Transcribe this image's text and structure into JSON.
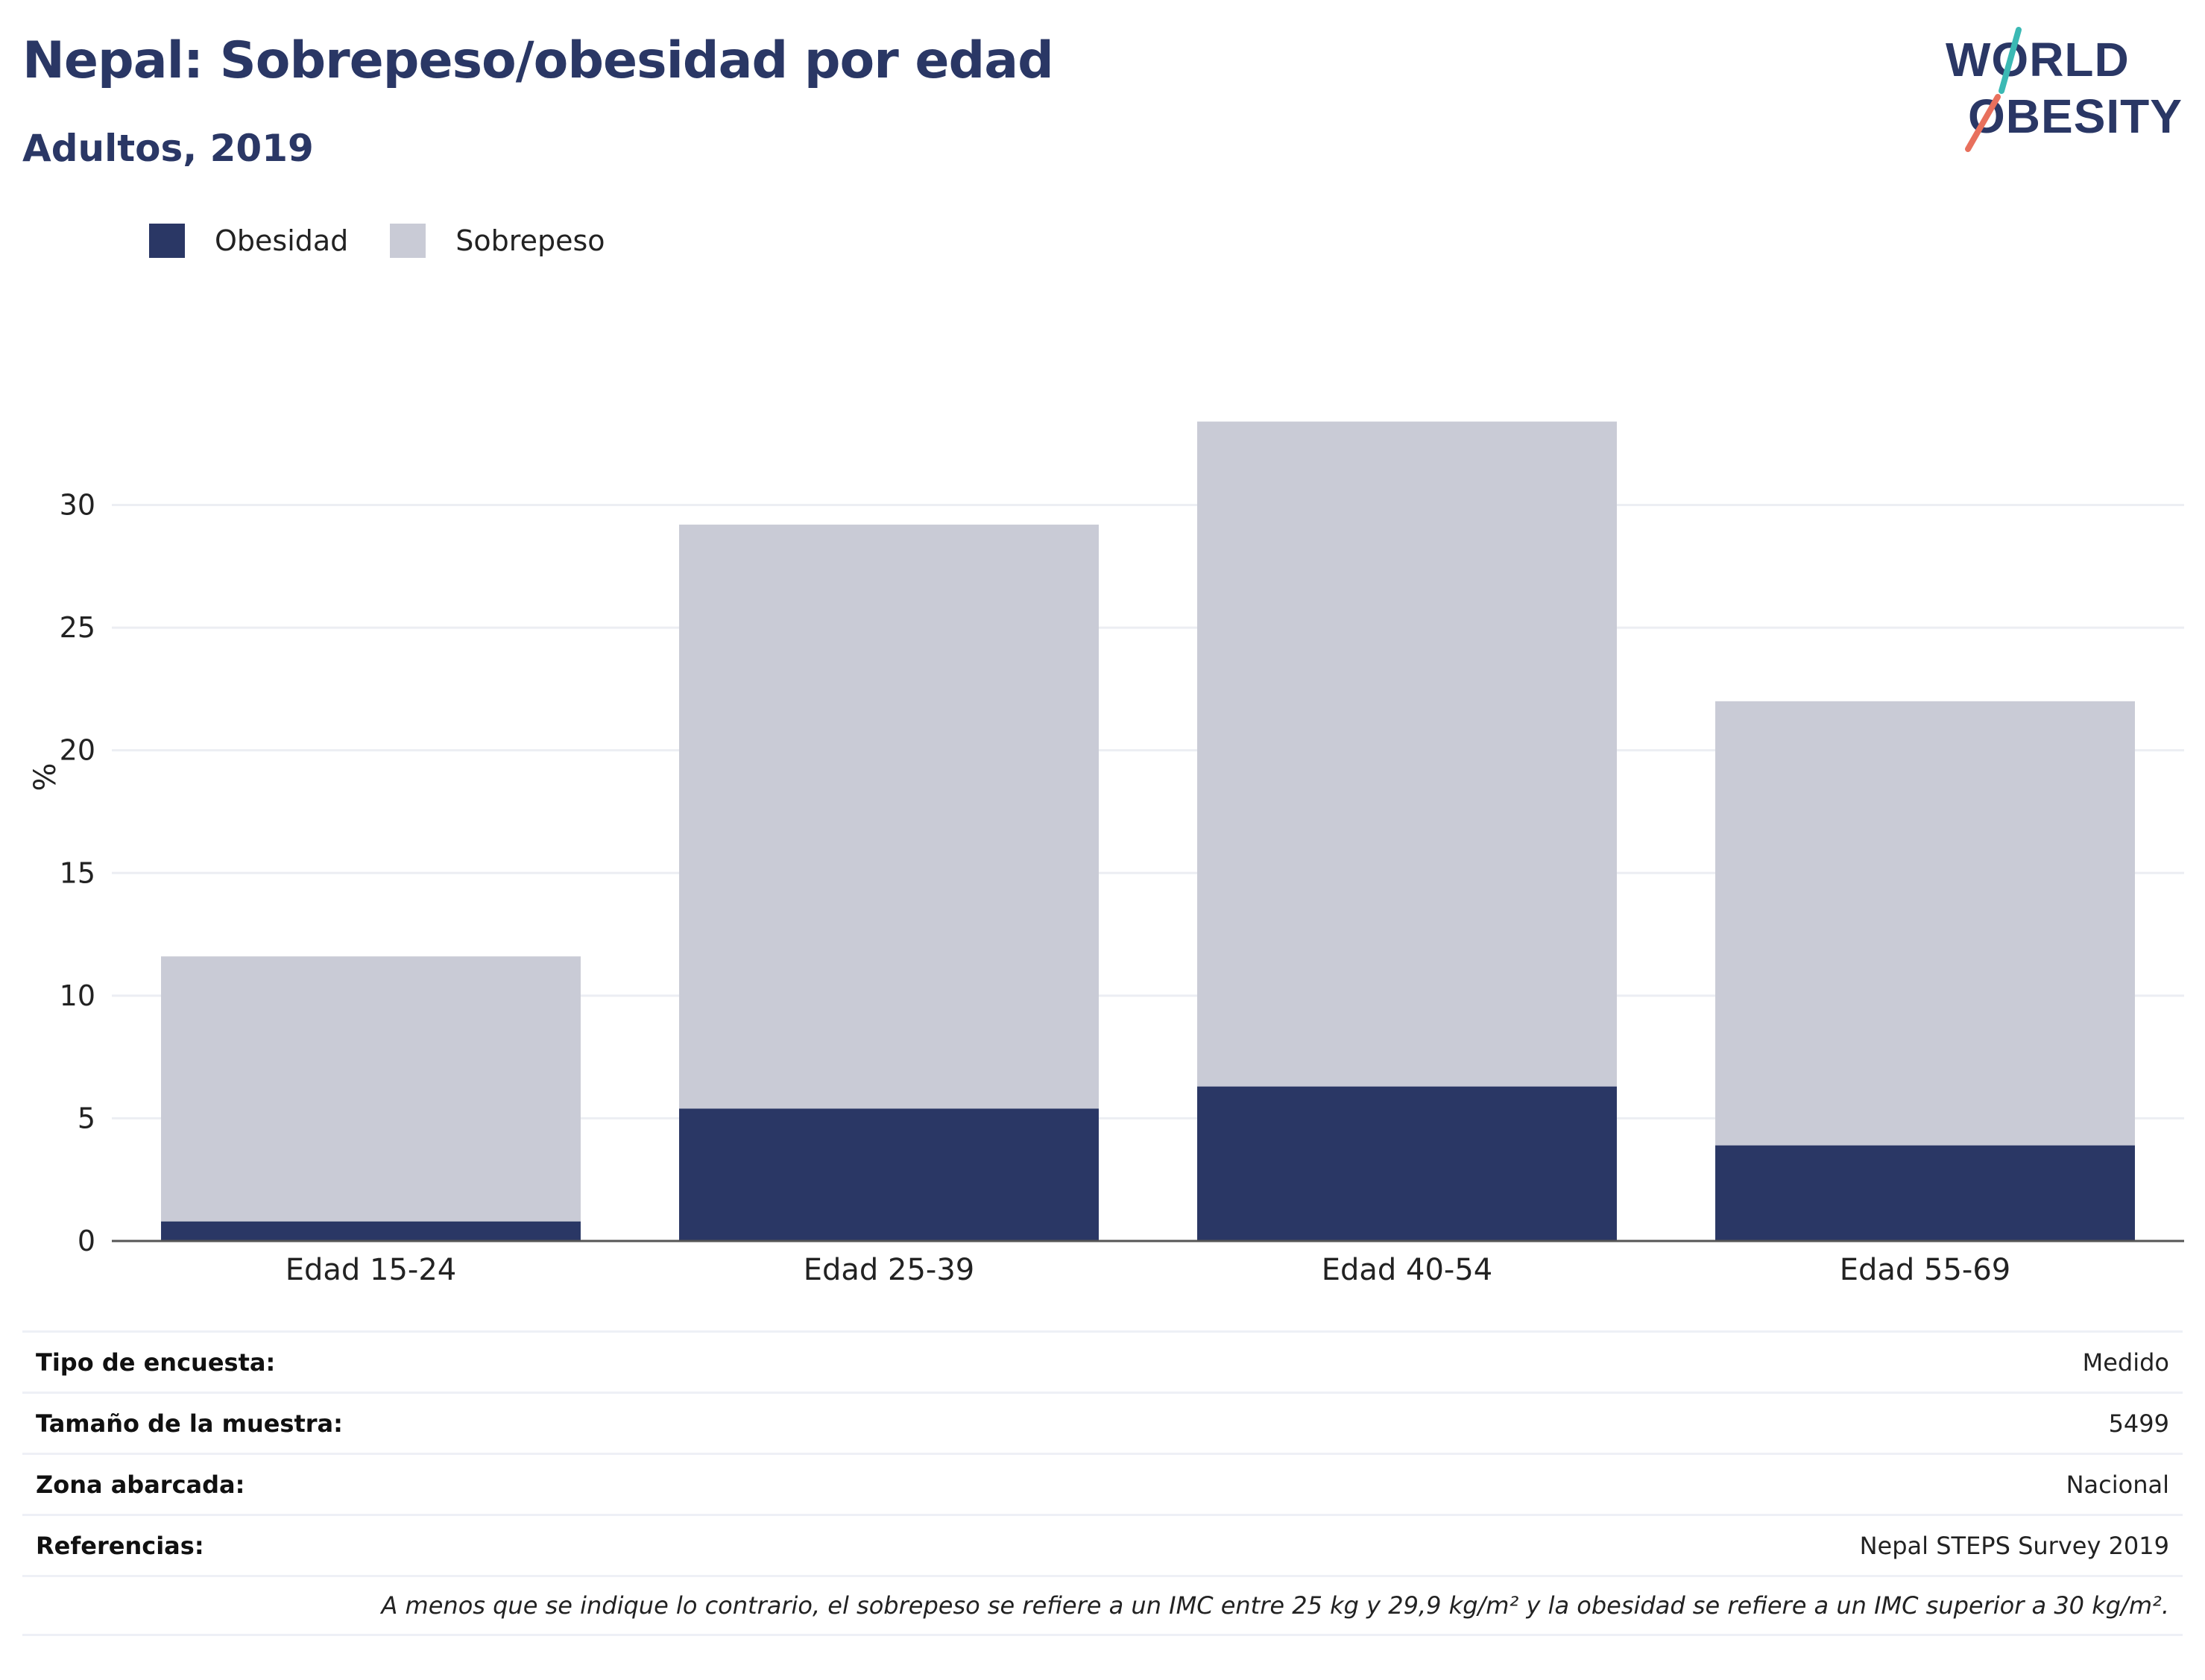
{
  "header": {
    "title": "Nepal: Sobrepeso/obesidad por edad",
    "subtitle": "Adultos, 2019"
  },
  "logo": {
    "line1": "WORLD",
    "line2": "OBESITY",
    "accent_colors": [
      "#e8705d",
      "#3bb9b4"
    ]
  },
  "legend": [
    {
      "label": "Obesidad",
      "color": "#2a3765"
    },
    {
      "label": "Sobrepeso",
      "color": "#c9cbd6"
    }
  ],
  "chart_data": {
    "type": "bar",
    "stacked": true,
    "categories": [
      "Edad 15-24",
      "Edad 25-39",
      "Edad 40-54",
      "Edad 55-69"
    ],
    "series": [
      {
        "name": "Obesidad",
        "color": "#2a3765",
        "values": [
          0.8,
          5.4,
          6.3,
          3.9
        ]
      },
      {
        "name": "Sobrepeso",
        "color": "#c9cbd6",
        "values": [
          10.8,
          23.8,
          27.1,
          18.1
        ]
      }
    ],
    "ylabel": "%",
    "yticks": [
      0,
      5,
      10,
      15,
      20,
      25,
      30
    ],
    "ylim": [
      0,
      36
    ],
    "grid": true,
    "legend_position": "top-left"
  },
  "meta": [
    {
      "key": "Tipo de encuesta:",
      "value": "Medido"
    },
    {
      "key": "Tamaño de la muestra:",
      "value": "5499"
    },
    {
      "key": "Zona abarcada:",
      "value": "Nacional"
    },
    {
      "key": "Referencias:",
      "value": "Nepal STEPS Survey 2019"
    }
  ],
  "note": "A menos que se indique lo contrario, el sobrepeso se refiere a un IMC entre 25 kg y 29,9 kg/m² y la obesidad se refiere a un IMC superior a 30 kg/m²."
}
